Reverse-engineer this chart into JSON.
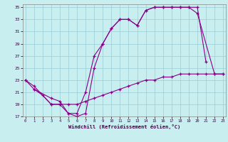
{
  "xlabel": "Windchill (Refroidissement éolien,°C)",
  "background_color": "#c8eef0",
  "grid_color": "#99ccd6",
  "line_color": "#880088",
  "c1_x": [
    0,
    1,
    3,
    4,
    5,
    6,
    7,
    8,
    9,
    10,
    11,
    12,
    13,
    14,
    15,
    16,
    17,
    18,
    19,
    20,
    21
  ],
  "c1_y": [
    23,
    22,
    19,
    19,
    17.5,
    17,
    17.5,
    25,
    29,
    31.5,
    33,
    33,
    32,
    34.5,
    35,
    35,
    35,
    35,
    35,
    35,
    26
  ],
  "c2_x": [
    1,
    3,
    4,
    5,
    6,
    7,
    8,
    9,
    10,
    11,
    12,
    13,
    14,
    15,
    16,
    17,
    18,
    19,
    20,
    22,
    23
  ],
  "c2_y": [
    21.5,
    20,
    19.5,
    17.5,
    17.5,
    21,
    27,
    29,
    31.5,
    33,
    33,
    32,
    34.5,
    35,
    35,
    35,
    35,
    35,
    34,
    24,
    24
  ],
  "c3_x": [
    0,
    1,
    2,
    3,
    4,
    5,
    6,
    7,
    8,
    9,
    10,
    11,
    12,
    13,
    14,
    15,
    16,
    17,
    18,
    19,
    20,
    21,
    22,
    23
  ],
  "c3_y": [
    23,
    21.5,
    20.5,
    19,
    19,
    19,
    19,
    19.5,
    20,
    20.5,
    21,
    21.5,
    22,
    22.5,
    23,
    23,
    23.5,
    23.5,
    24,
    24,
    24,
    24,
    24,
    24
  ],
  "ylim": [
    17,
    35
  ],
  "xlim": [
    -0.3,
    23.3
  ],
  "yticks": [
    17,
    19,
    21,
    23,
    25,
    27,
    29,
    31,
    33,
    35
  ],
  "xticks": [
    0,
    1,
    2,
    3,
    4,
    5,
    6,
    7,
    8,
    9,
    10,
    11,
    12,
    13,
    14,
    15,
    16,
    17,
    18,
    19,
    20,
    21,
    22,
    23
  ]
}
